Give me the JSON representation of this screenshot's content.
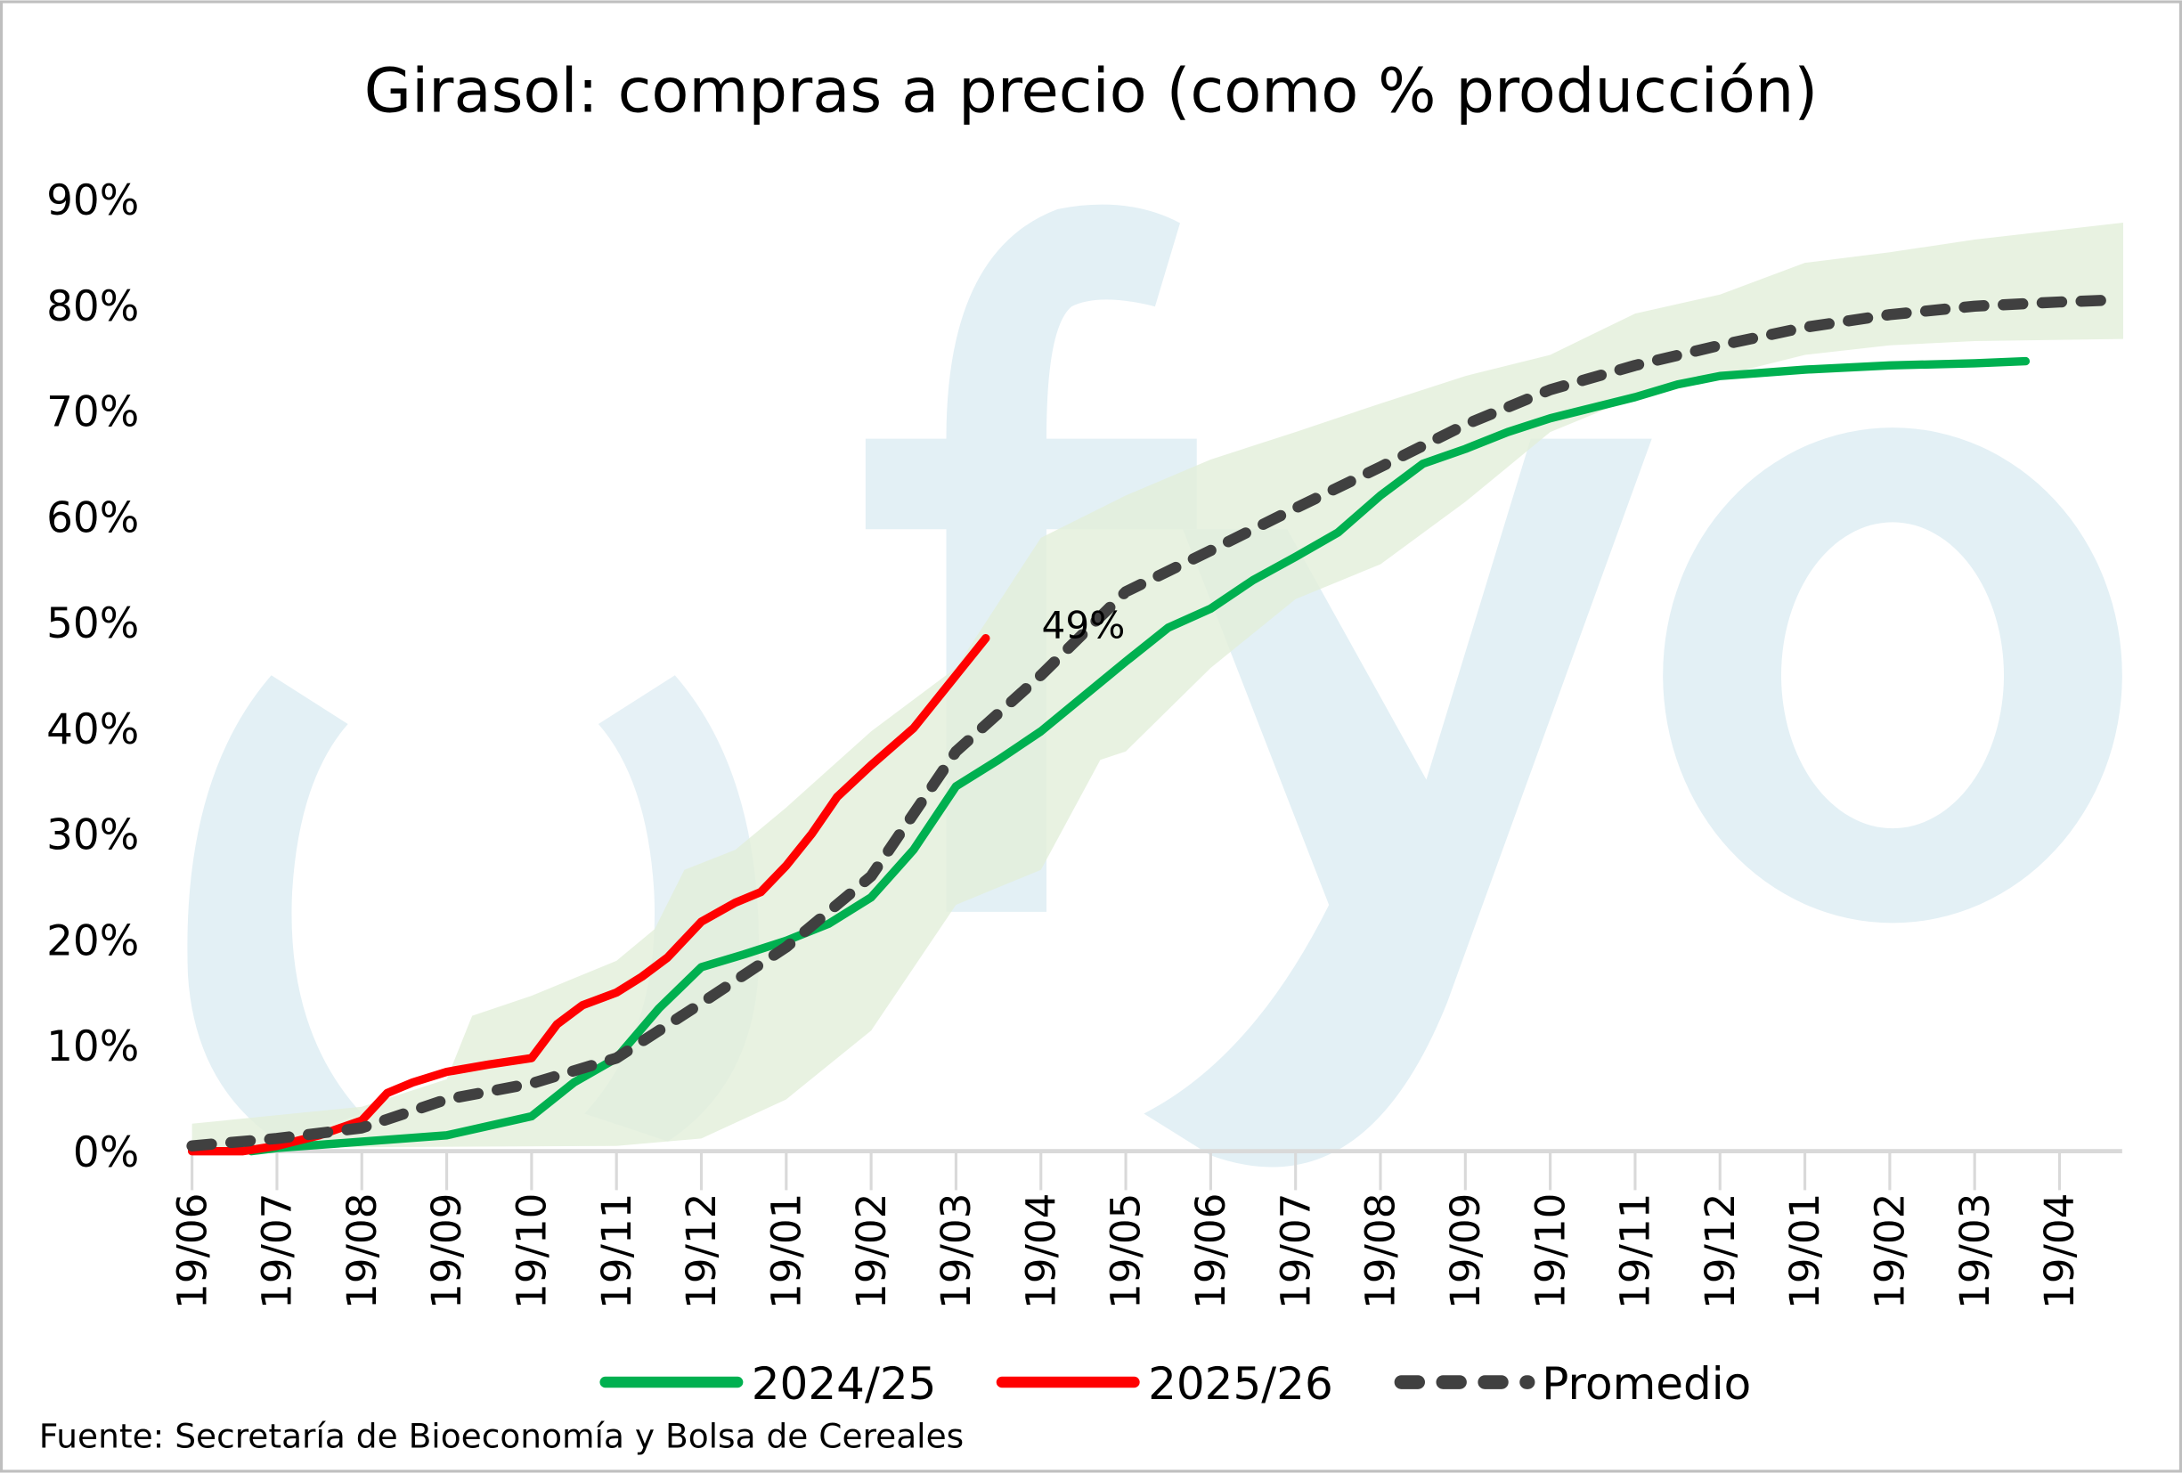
{
  "chart_data": {
    "type": "line",
    "title": "Girasol: compras a precio (como % producción)",
    "xlabel": "",
    "ylabel": "",
    "ylim": [
      0,
      90
    ],
    "x_unit": "months since 19/06",
    "x_tick_labels": [
      "19/06",
      "19/07",
      "19/08",
      "19/09",
      "19/10",
      "19/11",
      "19/12",
      "19/01",
      "19/02",
      "19/03",
      "19/04",
      "19/05",
      "19/06",
      "19/07",
      "19/08",
      "19/09",
      "19/10",
      "19/11",
      "19/12",
      "19/01",
      "19/02",
      "19/03",
      "19/04"
    ],
    "y_tick_labels": [
      "0%",
      "10%",
      "20%",
      "30%",
      "40%",
      "50%",
      "60%",
      "70%",
      "80%",
      "90%"
    ],
    "y_ticks": [
      0,
      10,
      20,
      30,
      40,
      50,
      60,
      70,
      80,
      90
    ],
    "grid": false,
    "legend_position": "bottom",
    "series": [
      {
        "name": "2024/25",
        "color": "#00b050",
        "style": "solid",
        "x": [
          0.7,
          1,
          2,
          3,
          4,
          4.5,
          5,
          5.5,
          6,
          6.5,
          7,
          7.5,
          8,
          8.5,
          9,
          9.5,
          10,
          10.5,
          11,
          11.5,
          12,
          12.5,
          13,
          13.5,
          14,
          14.5,
          15,
          15.5,
          16,
          16.5,
          17,
          17.5,
          18,
          19,
          20,
          21,
          21.6
        ],
        "y": [
          0,
          0.3,
          0.9,
          1.5,
          3.3,
          6.5,
          8.8,
          13.5,
          17.4,
          18.6,
          19.9,
          21.5,
          24,
          28.5,
          34.5,
          37,
          39.7,
          43,
          46.3,
          49.5,
          51.3,
          54,
          56.2,
          58.5,
          62,
          65,
          66.4,
          68,
          69.3,
          70.3,
          71.3,
          72.5,
          73.3,
          73.9,
          74.3,
          74.5,
          74.7
        ]
      },
      {
        "name": "2025/26",
        "color": "#ff0000",
        "style": "solid",
        "x": [
          0,
          0.6,
          1,
          1.5,
          2,
          2.3,
          2.6,
          3,
          3.5,
          4,
          4.3,
          4.6,
          5,
          5.3,
          5.6,
          6,
          6.4,
          6.7,
          7,
          7.3,
          7.6,
          8,
          8.5,
          9,
          9.35
        ],
        "y": [
          0,
          0,
          0.5,
          1.5,
          2.9,
          5.5,
          6.5,
          7.5,
          8.2,
          8.8,
          12,
          13.8,
          15,
          16.5,
          18.3,
          21.7,
          23.5,
          24.5,
          27,
          30,
          33.5,
          36.5,
          40,
          45,
          48.5
        ]
      },
      {
        "name": "Promedio",
        "color": "#404040",
        "style": "dashed",
        "x": [
          0,
          1,
          2,
          3,
          4,
          5,
          6,
          7,
          8,
          9,
          10,
          11,
          12,
          13,
          14,
          15,
          16,
          17,
          18,
          19,
          20,
          21,
          22,
          22.7
        ],
        "y": [
          0.5,
          1.2,
          2.2,
          4.9,
          6.4,
          8.8,
          14,
          19.3,
          26,
          37.8,
          45,
          52.9,
          56.8,
          60.8,
          64.7,
          68.7,
          72,
          74.3,
          76.2,
          77.9,
          79.1,
          79.9,
          80.3,
          80.5
        ]
      }
    ],
    "range_band": {
      "color": "#e2efda",
      "x_upper": [
        0,
        2,
        3,
        3.3,
        4,
        5,
        5.45,
        5.8,
        6.4,
        7,
        8,
        9,
        10,
        11,
        12,
        13,
        14,
        15,
        16,
        17,
        18,
        19,
        20,
        21,
        22.75
      ],
      "upper": [
        2.6,
        4.2,
        6.8,
        12.8,
        14.7,
        18,
        21,
        26.6,
        28.5,
        32.5,
        39.7,
        45.7,
        58,
        62,
        65.4,
        68,
        70.7,
        73.3,
        75.3,
        79.2,
        81,
        84,
        85,
        86.2,
        87.8
      ],
      "x_lower": [
        0,
        5,
        6,
        7,
        8,
        9,
        10,
        10.7,
        11,
        12,
        13,
        14,
        15,
        16,
        17,
        18,
        19,
        20,
        21,
        22.75
      ],
      "lower": [
        0.3,
        0.5,
        1.2,
        4.9,
        11.4,
        23.3,
        26.6,
        37,
        37.8,
        45.7,
        52.2,
        55.5,
        61.4,
        68,
        71.3,
        73.3,
        75.3,
        76.2,
        76.6,
        76.8
      ]
    },
    "annotations": [
      {
        "text": "49%",
        "x": 10.5,
        "y": 48.5
      }
    ]
  },
  "watermark": {
    "logo_text": "cfyo",
    "color": "#e3f0f5"
  },
  "source": "Fuente: Secretaría de Bioeconomía y Bolsa de Cereales"
}
